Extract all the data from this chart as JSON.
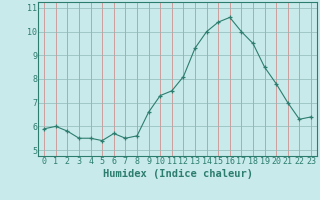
{
  "x": [
    0,
    1,
    2,
    3,
    4,
    5,
    6,
    7,
    8,
    9,
    10,
    11,
    12,
    13,
    14,
    15,
    16,
    17,
    18,
    19,
    20,
    21,
    22,
    23
  ],
  "y": [
    5.9,
    6.0,
    5.8,
    5.5,
    5.5,
    5.4,
    5.7,
    5.5,
    5.6,
    6.6,
    7.3,
    7.5,
    8.1,
    9.3,
    10.0,
    10.4,
    10.6,
    10.0,
    9.5,
    8.5,
    7.8,
    7.0,
    6.3,
    6.4
  ],
  "xlabel": "Humidex (Indice chaleur)",
  "xlim": [
    -0.5,
    23.5
  ],
  "ylim": [
    4.75,
    11.25
  ],
  "yticks": [
    5,
    6,
    7,
    8,
    9,
    10,
    11
  ],
  "xticks": [
    0,
    1,
    2,
    3,
    4,
    5,
    6,
    7,
    8,
    9,
    10,
    11,
    12,
    13,
    14,
    15,
    16,
    17,
    18,
    19,
    20,
    21,
    22,
    23
  ],
  "line_color": "#2d7d6e",
  "marker": "+",
  "background_color": "#c8eaea",
  "grid_color": "#b0d0d0",
  "grid_color_v": "#e08080",
  "xlabel_fontsize": 7.5,
  "tick_fontsize": 6.0,
  "spine_color": "#2d7d6e"
}
